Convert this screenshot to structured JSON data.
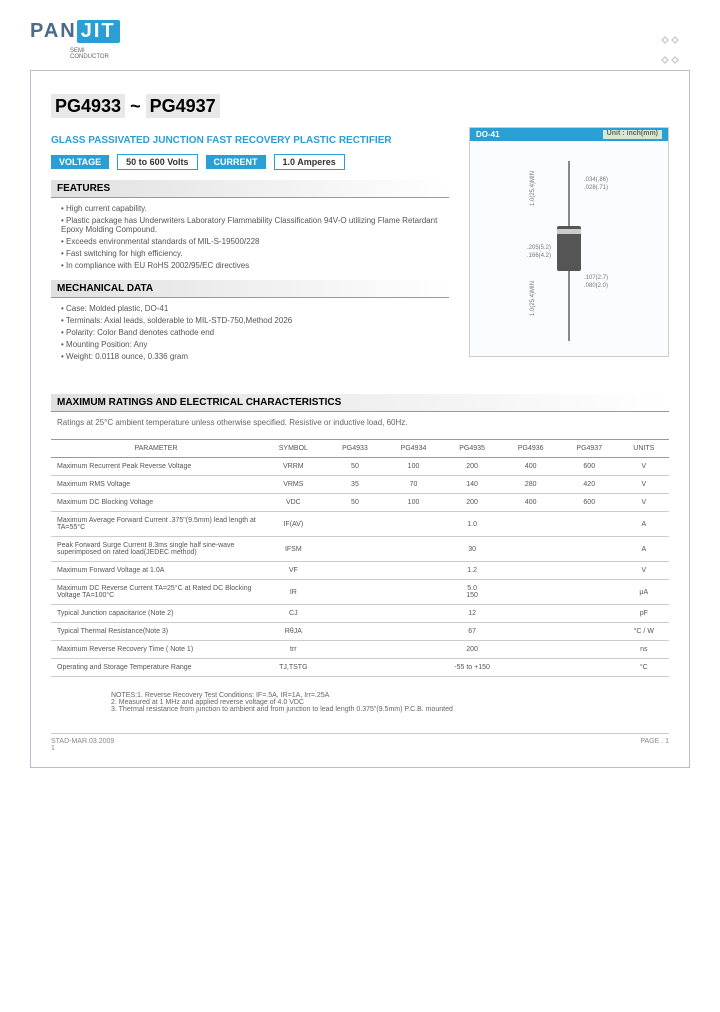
{
  "logo": {
    "prefix": "PAN",
    "suffix": "JIT",
    "sub1": "SEMI",
    "sub2": "CONDUCTOR"
  },
  "header": {
    "title_part1": "PG4933",
    "title_sep": " ~ ",
    "title_part2": "PG4937",
    "subtitle": "GLASS PASSIVATED JUNCTION FAST RECOVERY PLASTIC RECTIFIER",
    "voltage_label": "VOLTAGE",
    "voltage_value": "50 to 600 Volts",
    "current_label": "CURRENT",
    "current_value": "1.0 Amperes"
  },
  "diagram": {
    "package_label": "DO-41",
    "unit_label": "Unit : inch(mm)",
    "dim1": ".034(.86)",
    "dim2": ".028(.71)",
    "dim3": "1.0(25.4)MIN",
    "dim4": ".205(5.2)",
    "dim5": ".166(4.2)",
    "dim6": "1.0(25.4)MIN",
    "dim7": ".107(2.7)",
    "dim8": ".080(2.0)"
  },
  "sections": {
    "features": "FEATURES",
    "mechanical": "MECHANICAL DATA",
    "ratings": "MAXIMUM RATINGS AND ELECTRICAL CHARACTERISTICS"
  },
  "features": [
    "High current capability.",
    "Plastic package has Underwriters Laboratory Flammability Classification 94V-O utilizing Flame Retardant Epoxy Molding Compound.",
    "Exceeds environmental standards of MIL-S-19500/228",
    "Fast switching for high efficiency.",
    "In compliance with EU RoHS 2002/95/EC directives"
  ],
  "mechanical": [
    "Case: Molded plastic, DO-41",
    "Terminals: Axial leads, solderable to MIL-STD-750,Method 2026",
    "Polarity: Color Band denotes cathode end",
    "Mounting Position: Any",
    "Weight: 0.0118 ounce, 0.336 gram"
  ],
  "ratings_note": "Ratings at 25°C ambient temperature unless otherwise specified. Resistive or inductive load, 60Hz.",
  "table": {
    "headers": [
      "PARAMETER",
      "SYMBOL",
      "PG4933",
      "PG4934",
      "PG4935",
      "PG4936",
      "PG4937",
      "UNITS"
    ],
    "rows": [
      {
        "param": "Maximum Recurrent Peak Reverse Voltage",
        "symbol": "VRRM",
        "v": [
          "50",
          "100",
          "200",
          "400",
          "600"
        ],
        "unit": "V"
      },
      {
        "param": "Maximum RMS Voltage",
        "symbol": "VRMS",
        "v": [
          "35",
          "70",
          "140",
          "280",
          "420"
        ],
        "unit": "V"
      },
      {
        "param": "Maximum DC Blocking Voltage",
        "symbol": "VDC",
        "v": [
          "50",
          "100",
          "200",
          "400",
          "600"
        ],
        "unit": "V"
      },
      {
        "param": "Maximum Average Forward Current .375\"(9.5mm) lead length at TA=55°C",
        "symbol": "IF(AV)",
        "span": "1.0",
        "unit": "A"
      },
      {
        "param": "Peak Forward Surge Current 8.3ms single half sine-wave superimposed on rated load(JEDEC method)",
        "symbol": "IFSM",
        "span": "30",
        "unit": "A"
      },
      {
        "param": "Maximum Forward Voltage at 1.0A",
        "symbol": "VF",
        "span": "1.2",
        "unit": "V"
      },
      {
        "param": "Maximum DC Reverse Current TA=25°C at Rated DC Blocking Voltage TA=100°C",
        "symbol": "IR",
        "span": "5.0\n150",
        "unit": "μA"
      },
      {
        "param": "Typical Junction capacitance (Note 2)",
        "symbol": "CJ",
        "span": "12",
        "unit": "pF"
      },
      {
        "param": "Typical Thermal Resistance(Note 3)",
        "symbol": "RθJA",
        "span": "67",
        "unit": "°C / W"
      },
      {
        "param": "Maximum Reverse Recovery Time ( Note 1)",
        "symbol": "trr",
        "span": "200",
        "unit": "ns"
      },
      {
        "param": "Operating and Storage Temperature Range",
        "symbol": "TJ,TSTG",
        "span": "-55 to +150",
        "unit": "°C"
      }
    ]
  },
  "notes": [
    "NOTES:1. Reverse Recovery Test Conditions: IF=.5A, IR=1A, Irr=.25A",
    "2. Measured at 1 MHz and applied reverse voltage of 4.0 VDC",
    "3. Thermal resistance from junction to ambient and from junction to lead length 0.375\"(9.5mm) P.C.B. mounted"
  ],
  "footer": {
    "date": "STAD-MAR.03.2009",
    "page": "PAGE .  1",
    "num": "1"
  }
}
